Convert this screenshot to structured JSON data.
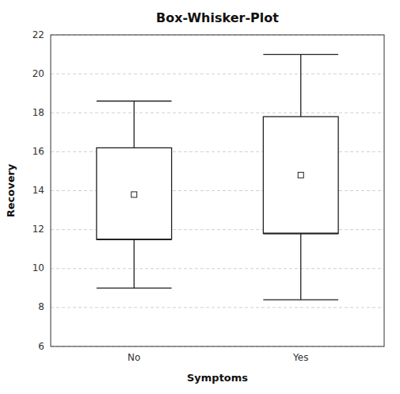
{
  "chart_data": {
    "type": "box",
    "title": "Box-Whisker-Plot",
    "xlabel": "Symptoms",
    "ylabel": "Recovery",
    "categories": [
      "No",
      "Yes"
    ],
    "boxes": [
      {
        "q1": 11.5,
        "median": 11.5,
        "q3": 16.2,
        "whisker_low": 9.0,
        "whisker_high": 18.6,
        "mean": 13.8
      },
      {
        "q1": 11.8,
        "median": 11.8,
        "q3": 17.8,
        "whisker_low": 8.4,
        "whisker_high": 21.0,
        "mean": 14.8
      }
    ],
    "ylim": [
      6,
      22
    ],
    "yticks": [
      6,
      8,
      10,
      12,
      14,
      16,
      18,
      20,
      22
    ],
    "grid": true,
    "marker": "square"
  }
}
